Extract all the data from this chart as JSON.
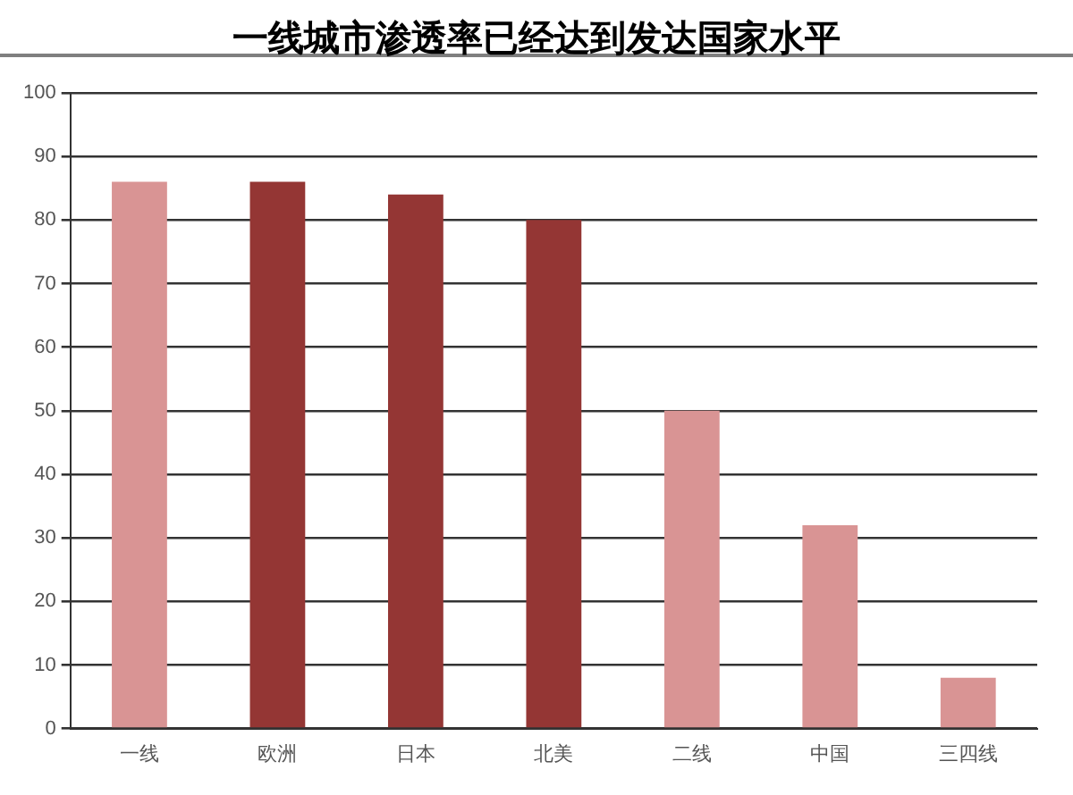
{
  "chart_data": {
    "type": "bar",
    "title": "一线城市渗透率已经达到发达国家水平",
    "categories": [
      "一线",
      "欧洲",
      "日本",
      "北美",
      "二线",
      "中国",
      "三四线"
    ],
    "values": [
      86,
      86,
      84,
      80,
      50,
      32,
      8
    ],
    "colors": [
      "#d99494",
      "#943634",
      "#943634",
      "#943634",
      "#d99494",
      "#d99494",
      "#d99494"
    ],
    "ylim": [
      0,
      100
    ],
    "yticks": [
      0,
      10,
      20,
      30,
      40,
      50,
      60,
      70,
      80,
      90,
      100
    ],
    "grid": "y",
    "legend": false
  }
}
